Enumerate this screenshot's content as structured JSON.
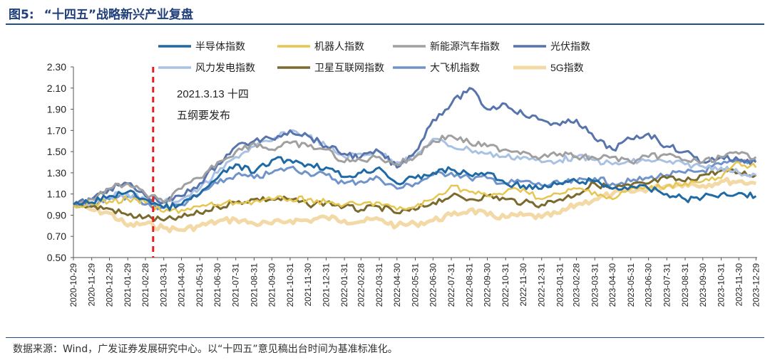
{
  "figure": {
    "label": "图5:",
    "title": "“十四五”战略新兴产业复盘"
  },
  "source": "数据来源：Wind，广发证券发展研究中心。以“十四五”意见稿出台时间为基准标准化。",
  "annotation": {
    "line1": "2021.3.13 十四",
    "line2": "五纲要发布",
    "date": "2021-03-13",
    "color": "#e02020"
  },
  "chart_data": {
    "type": "line",
    "xlabel": "",
    "ylabel": "",
    "ylim": [
      0.5,
      2.3
    ],
    "yticks": [
      "0.50",
      "0.70",
      "0.90",
      "1.10",
      "1.30",
      "1.50",
      "1.70",
      "1.90",
      "2.10",
      "2.30"
    ],
    "xlim": [
      "2020-10-29",
      "2023-12-31"
    ],
    "x": [
      "2020-10-29",
      "2020-11-29",
      "2020-12-29",
      "2021-01-29",
      "2021-02-28",
      "2021-03-31",
      "2021-04-30",
      "2021-05-31",
      "2021-06-30",
      "2021-07-31",
      "2021-08-31",
      "2021-09-30",
      "2021-10-31",
      "2021-11-30",
      "2021-12-31",
      "2022-01-31",
      "2022-02-28",
      "2022-03-31",
      "2022-04-30",
      "2022-05-31",
      "2022-06-30",
      "2022-07-31",
      "2022-08-31",
      "2022-09-30",
      "2022-10-31",
      "2022-11-30",
      "2022-12-31",
      "2023-01-31",
      "2023-02-28",
      "2023-03-31",
      "2023-04-30",
      "2023-05-31",
      "2023-06-30",
      "2023-07-31",
      "2023-08-31",
      "2023-09-30",
      "2023-10-31",
      "2023-11-30",
      "2023-12-29"
    ],
    "grid": false,
    "legend_position": "top",
    "series": [
      {
        "name": "半导体指数",
        "color": "#1f6aa5",
        "width": 3,
        "values": [
          1.0,
          1.02,
          1.08,
          1.12,
          1.05,
          0.97,
          1.0,
          1.1,
          1.25,
          1.38,
          1.3,
          1.42,
          1.42,
          1.38,
          1.35,
          1.26,
          1.3,
          1.35,
          1.2,
          1.25,
          1.3,
          1.33,
          1.28,
          1.3,
          1.2,
          1.18,
          1.15,
          1.2,
          1.22,
          1.22,
          1.15,
          1.17,
          1.15,
          1.1,
          1.05,
          1.07,
          1.1,
          1.11,
          1.08
        ]
      },
      {
        "name": "机器人指数",
        "color": "#e6c650",
        "width": 2.5,
        "values": [
          1.0,
          1.0,
          1.03,
          1.05,
          1.02,
          0.93,
          0.95,
          0.98,
          1.0,
          1.02,
          1.03,
          1.05,
          1.05,
          1.05,
          1.02,
          1.0,
          1.0,
          1.02,
          0.95,
          0.98,
          1.05,
          1.18,
          1.12,
          1.08,
          1.12,
          1.15,
          1.05,
          1.1,
          1.15,
          1.12,
          1.05,
          1.15,
          1.15,
          1.18,
          1.2,
          1.22,
          1.25,
          1.4,
          1.35
        ]
      },
      {
        "name": "新能源汽车指数",
        "color": "#a0a0a0",
        "width": 3,
        "values": [
          1.0,
          1.05,
          1.15,
          1.2,
          1.1,
          1.02,
          1.15,
          1.25,
          1.4,
          1.5,
          1.58,
          1.52,
          1.58,
          1.55,
          1.52,
          1.4,
          1.42,
          1.45,
          1.38,
          1.45,
          1.6,
          1.65,
          1.58,
          1.55,
          1.52,
          1.5,
          1.45,
          1.48,
          1.45,
          1.44,
          1.45,
          1.4,
          1.45,
          1.47,
          1.42,
          1.4,
          1.45,
          1.48,
          1.45
        ]
      },
      {
        "name": "光伏指数",
        "color": "#5774ad",
        "width": 3,
        "values": [
          1.0,
          1.05,
          1.15,
          1.2,
          1.08,
          1.02,
          1.08,
          1.2,
          1.38,
          1.55,
          1.6,
          1.62,
          1.7,
          1.65,
          1.55,
          1.48,
          1.45,
          1.5,
          1.35,
          1.5,
          1.8,
          1.95,
          2.1,
          1.9,
          1.95,
          1.85,
          1.8,
          1.75,
          1.8,
          1.62,
          1.52,
          1.62,
          1.67,
          1.55,
          1.5,
          1.4,
          1.45,
          1.42,
          1.4
        ]
      },
      {
        "name": "风力发电指数",
        "color": "#a9c1e3",
        "width": 3,
        "values": [
          1.0,
          1.02,
          1.08,
          1.1,
          1.05,
          1.03,
          1.05,
          1.15,
          1.3,
          1.45,
          1.55,
          1.6,
          1.7,
          1.65,
          1.55,
          1.45,
          1.48,
          1.5,
          1.4,
          1.45,
          1.62,
          1.55,
          1.52,
          1.48,
          1.45,
          1.45,
          1.4,
          1.42,
          1.45,
          1.42,
          1.38,
          1.4,
          1.42,
          1.4,
          1.38,
          1.36,
          1.35,
          1.3,
          1.28
        ]
      },
      {
        "name": "卫星互联网指数",
        "color": "#7a6a2e",
        "width": 3,
        "values": [
          1.0,
          0.98,
          0.96,
          0.9,
          0.88,
          0.85,
          0.88,
          0.92,
          0.98,
          1.02,
          1.05,
          1.05,
          1.05,
          1.0,
          1.02,
          0.98,
          0.95,
          0.98,
          0.92,
          0.95,
          1.02,
          1.08,
          1.05,
          1.08,
          1.05,
          1.02,
          1.0,
          1.05,
          1.1,
          1.2,
          1.15,
          1.18,
          1.2,
          1.25,
          1.22,
          1.28,
          1.32,
          1.3,
          1.28
        ]
      },
      {
        "name": "大飞机指数",
        "color": "#7094c9",
        "width": 3,
        "values": [
          1.0,
          1.0,
          1.05,
          1.08,
          1.0,
          0.97,
          1.0,
          1.1,
          1.2,
          1.28,
          1.25,
          1.3,
          1.35,
          1.3,
          1.28,
          1.2,
          1.22,
          1.25,
          1.15,
          1.2,
          1.28,
          1.3,
          1.25,
          1.25,
          1.2,
          1.22,
          1.18,
          1.2,
          1.22,
          1.25,
          1.2,
          1.22,
          1.25,
          1.28,
          1.3,
          1.32,
          1.38,
          1.4,
          1.42
        ]
      },
      {
        "name": "5G指数",
        "color": "#f2d9a6",
        "width": 5,
        "values": [
          1.0,
          0.95,
          0.92,
          0.8,
          0.82,
          0.78,
          0.76,
          0.8,
          0.84,
          0.86,
          0.82,
          0.82,
          0.85,
          0.85,
          0.88,
          0.85,
          0.84,
          0.86,
          0.8,
          0.82,
          0.85,
          0.9,
          0.95,
          0.9,
          0.88,
          0.9,
          0.88,
          0.92,
          1.0,
          1.05,
          1.1,
          1.12,
          1.15,
          1.18,
          1.2,
          1.18,
          1.22,
          1.22,
          1.2
        ]
      }
    ]
  }
}
